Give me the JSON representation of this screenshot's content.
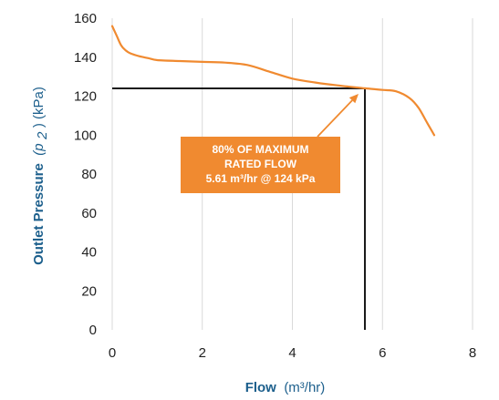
{
  "chart_data": {
    "type": "line",
    "xlabel": {
      "main": "Flow",
      "unit": "(m³/hr)"
    },
    "ylabel": {
      "main": "Outlet Pressure",
      "symbol": "(p",
      "subscript": "2",
      "unit": ") (kPa)"
    },
    "xlim": [
      0,
      8
    ],
    "ylim": [
      0,
      160
    ],
    "x_ticks": [
      "0",
      "2",
      "4",
      "6",
      "8"
    ],
    "y_ticks": [
      "0",
      "20",
      "40",
      "60",
      "80",
      "100",
      "120",
      "140",
      "160"
    ],
    "grid": "vertical",
    "series": [
      {
        "color": "#f08a30",
        "points": [
          [
            0.0,
            156
          ],
          [
            0.1,
            151
          ],
          [
            0.2,
            146
          ],
          [
            0.3,
            143.5
          ],
          [
            0.4,
            142
          ],
          [
            0.6,
            140.5
          ],
          [
            0.8,
            139.5
          ],
          [
            1.0,
            138.5
          ],
          [
            1.5,
            138
          ],
          [
            2.0,
            137.6
          ],
          [
            2.5,
            137.2
          ],
          [
            3.0,
            136
          ],
          [
            3.5,
            132.5
          ],
          [
            4.0,
            129
          ],
          [
            4.5,
            127
          ],
          [
            5.0,
            125.5
          ],
          [
            5.5,
            124.3
          ],
          [
            5.61,
            124
          ],
          [
            6.0,
            123.2
          ],
          [
            6.3,
            122.5
          ],
          [
            6.6,
            119
          ],
          [
            6.8,
            114
          ],
          [
            7.0,
            106
          ],
          [
            7.15,
            100
          ]
        ]
      }
    ],
    "marker": {
      "x": 5.61,
      "y": 124,
      "line_color": "#1a1a1a"
    },
    "annotation": {
      "lines": [
        "80% OF MAXIMUM",
        "RATED FLOW",
        "5.61 m³/hr @ 124 kPa"
      ],
      "box_color": "#f08a30",
      "text_color": "#ffffff"
    },
    "colors": {
      "axis_title": "#1c5f8c",
      "grid": "#d9d9d9"
    }
  }
}
